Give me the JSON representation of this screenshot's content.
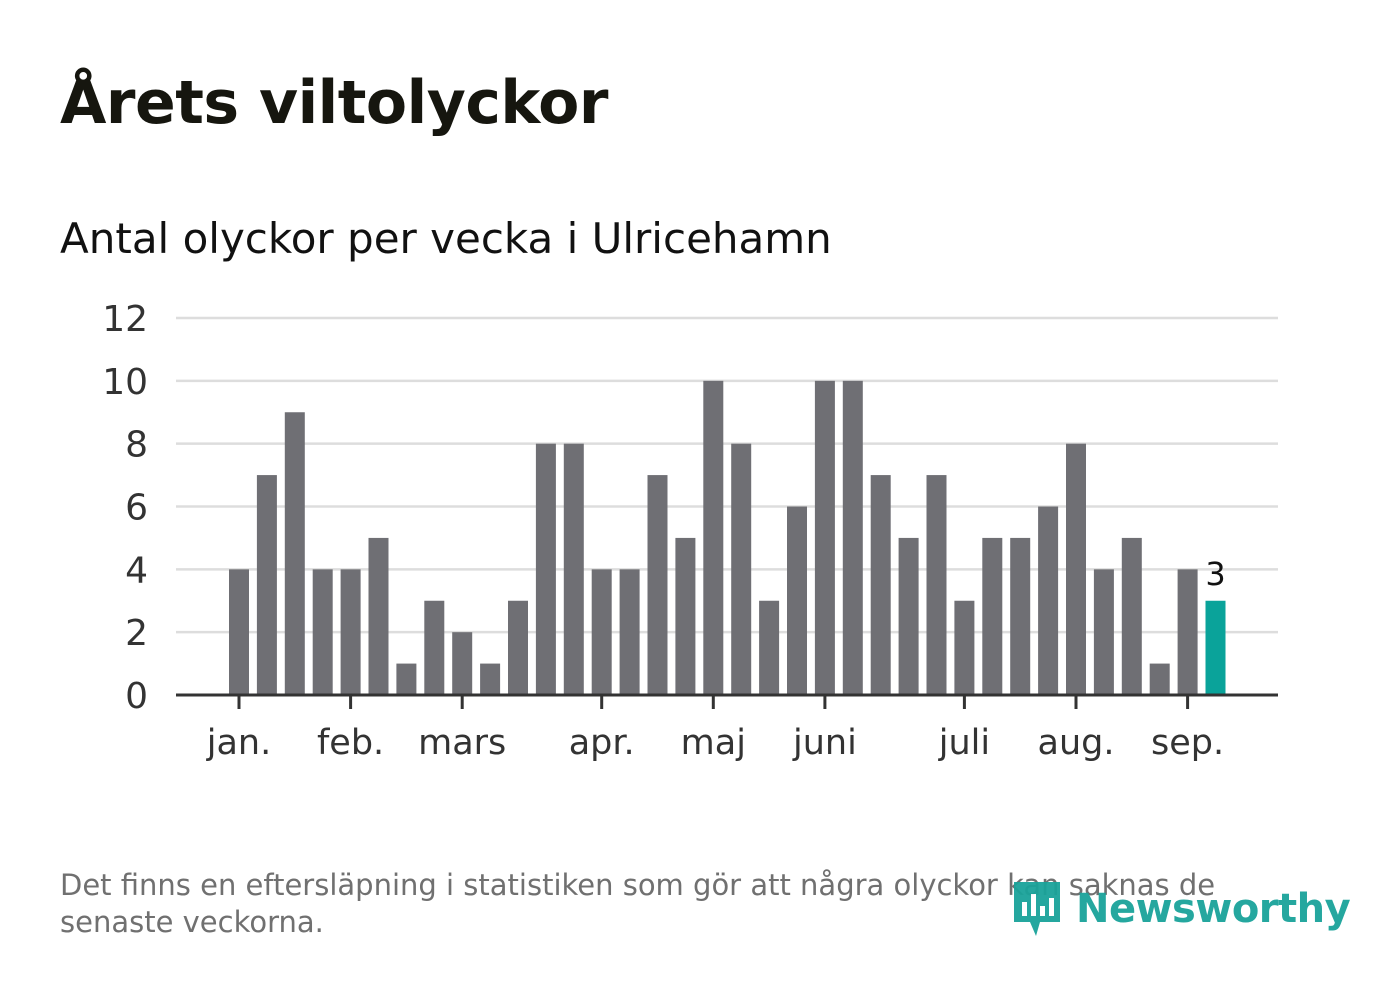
{
  "title": "Årets viltolyckor",
  "subtitle": "Antal olyckor per vecka i Ulricehamn",
  "note": "Det finns en eftersläpning i statistiken som gör att några olyckor kan saknas de senaste veckorna.",
  "logo": {
    "text": "Newsworthy",
    "icon": "newsworthy-logo-icon",
    "color": "#1aa39a"
  },
  "colors": {
    "bar": "#6f6f74",
    "highlight": "#0aa39a",
    "grid": "#dddddd",
    "axis": "#333333"
  },
  "chart_data": {
    "type": "bar",
    "ylim": [
      0,
      12
    ],
    "yticks": [
      0,
      2,
      4,
      6,
      8,
      10,
      12
    ],
    "grid": true,
    "values": [
      4,
      7,
      9,
      4,
      4,
      5,
      1,
      3,
      2,
      1,
      3,
      8,
      8,
      4,
      4,
      7,
      5,
      10,
      8,
      3,
      6,
      10,
      10,
      7,
      5,
      7,
      3,
      5,
      5,
      6,
      8,
      4,
      5,
      1,
      4,
      3
    ],
    "highlight_index": 35,
    "highlight_label": "3",
    "month_labels": [
      {
        "label": "jan.",
        "week": 1
      },
      {
        "label": "feb.",
        "week": 5
      },
      {
        "label": "mars",
        "week": 9
      },
      {
        "label": "apr.",
        "week": 14
      },
      {
        "label": "maj",
        "week": 18
      },
      {
        "label": "juni",
        "week": 22
      },
      {
        "label": "juli",
        "week": 27
      },
      {
        "label": "aug.",
        "week": 31
      },
      {
        "label": "sep.",
        "week": 35
      }
    ]
  }
}
